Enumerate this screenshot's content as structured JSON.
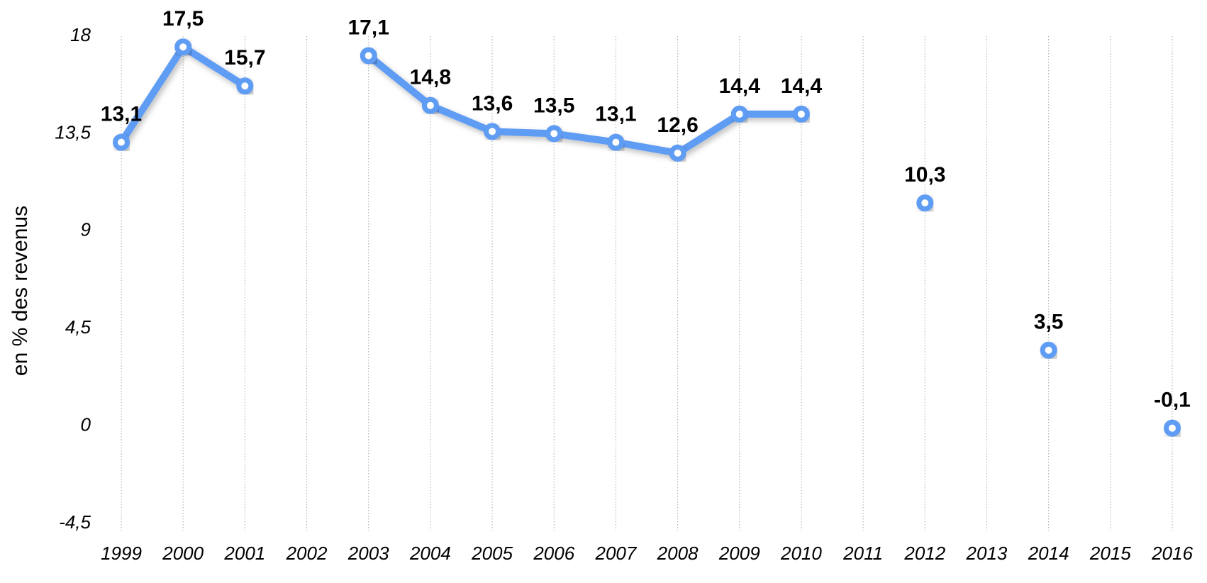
{
  "chart_data": {
    "type": "line",
    "y_label": "en % des revenus",
    "categories": [
      "1999",
      "2000",
      "2001",
      "2002",
      "2003",
      "2004",
      "2005",
      "2006",
      "2007",
      "2008",
      "2009",
      "2010",
      "2011",
      "2012",
      "2013",
      "2014",
      "2015",
      "2016"
    ],
    "values": [
      13.1,
      17.5,
      15.7,
      null,
      17.1,
      14.8,
      13.6,
      13.5,
      13.1,
      12.6,
      14.4,
      14.4,
      null,
      10.3,
      null,
      3.5,
      null,
      -0.1
    ],
    "value_labels": [
      "13,1",
      "17,5",
      "15,7",
      null,
      "17,1",
      "14,8",
      "13,6",
      "13,5",
      "13,1",
      "12,6",
      "14,4",
      "14,4",
      null,
      "10,3",
      null,
      "3,5",
      null,
      "-0,1"
    ],
    "color": "#5e9cf4",
    "ylim": [
      -4.5,
      18
    ],
    "yticks": [
      {
        "value": -4.5,
        "label": "-4,5"
      },
      0,
      {
        "value": 4.5,
        "label": "4,5"
      },
      9,
      {
        "value": 13.5,
        "label": "13,5"
      },
      18
    ],
    "vertical_grid": true
  }
}
